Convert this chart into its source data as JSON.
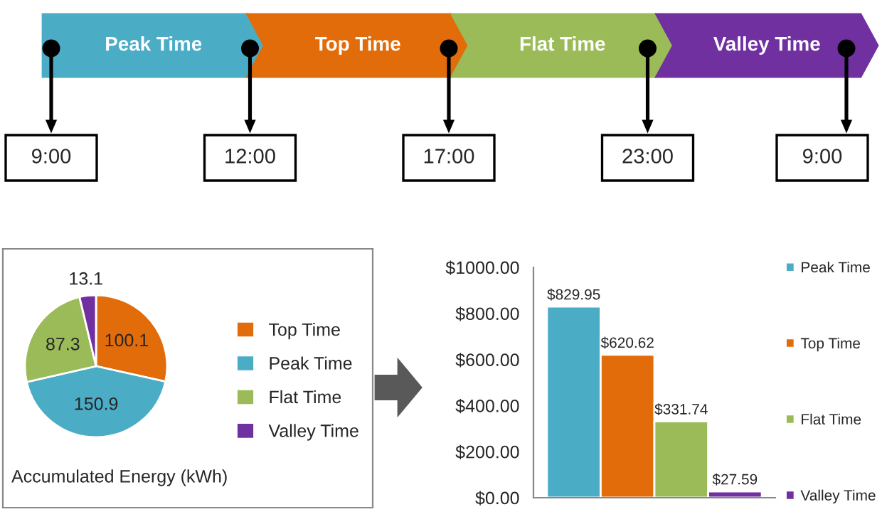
{
  "chart_data": [
    {
      "type": "other",
      "categories": [
        "Peak Time",
        "Top Time",
        "Flat Time",
        "Valley Time"
      ],
      "colors": [
        "#4bacc6",
        "#e36c0a",
        "#9bbb59",
        "#7030a0"
      ],
      "annotations": [
        "9:00",
        "12:00",
        "17:00",
        "23:00",
        "9:00"
      ]
    },
    {
      "type": "pie",
      "title": "Accumulated Energy (kWh)",
      "categories": [
        "Top Time",
        "Peak Time",
        "Flat Time",
        "Valley Time"
      ],
      "values": [
        100.1,
        150.9,
        87.3,
        13.1
      ],
      "colors": [
        "#e36c0a",
        "#4bacc6",
        "#9bbb59",
        "#7030a0"
      ],
      "data_labels": true,
      "legend": "right"
    },
    {
      "type": "bar",
      "categories": [
        null
      ],
      "series": [
        {
          "name": "Peak Time",
          "color": "#4bacc6",
          "values": [
            829.95
          ]
        },
        {
          "name": "Top Time",
          "color": "#e36c0a",
          "values": [
            620.62
          ]
        },
        {
          "name": "Flat Time",
          "color": "#9bbb59",
          "values": [
            331.74
          ]
        },
        {
          "name": "Valley Time",
          "color": "#7030a0",
          "values": [
            27.59
          ]
        }
      ],
      "value_labels": [
        "$829.95",
        "$620.62",
        "$331.74",
        "$27.59"
      ],
      "ylim": [
        0,
        1000
      ],
      "yticks": [
        {
          "value": 0,
          "label": "$0.00"
        },
        {
          "value": 200,
          "label": "$200.00"
        },
        {
          "value": 400,
          "label": "$400.00"
        },
        {
          "value": 600,
          "label": "$600.00"
        },
        {
          "value": 800,
          "label": "$800.00"
        },
        {
          "value": 1000,
          "label": "$1000.00"
        }
      ],
      "grid": false,
      "legend": "right"
    }
  ]
}
